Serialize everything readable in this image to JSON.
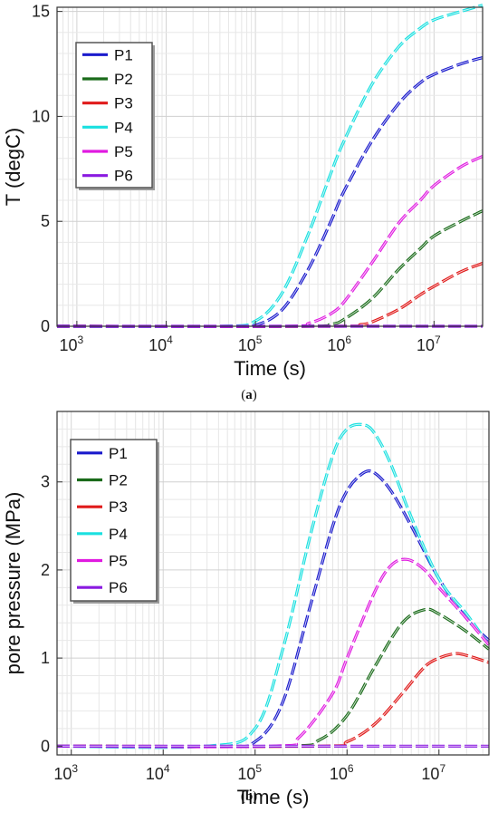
{
  "chart_data": [
    {
      "type": "line",
      "panel": "a",
      "caption": "(a)",
      "xlabel": "Time (s)",
      "ylabel": "T (degC)",
      "xscale": "log",
      "xlim": [
        600,
        35000000
      ],
      "ylim": [
        0,
        15.2
      ],
      "xticks": [
        {
          "base": "10",
          "exp": "3",
          "value": 1000
        },
        {
          "base": "10",
          "exp": "4",
          "value": 10000
        },
        {
          "base": "10",
          "exp": "5",
          "value": 100000
        },
        {
          "base": "10",
          "exp": "6",
          "value": 1000000
        },
        {
          "base": "10",
          "exp": "7",
          "value": 10000000
        }
      ],
      "yticks": [
        "0",
        "5",
        "10",
        "15"
      ],
      "ytick_values": [
        0,
        5,
        10,
        15
      ],
      "grid": true,
      "legend": "top-left",
      "series": [
        {
          "name": "P1",
          "color": "#1a1acc",
          "x": [
            600,
            50000,
            100000,
            200000,
            400000,
            700000,
            1000000,
            2000000,
            4000000,
            7000000,
            10000000,
            20000000,
            35000000
          ],
          "y": [
            0,
            0,
            0.05,
            0.8,
            2.8,
            5.0,
            6.5,
            8.8,
            10.6,
            11.6,
            12.0,
            12.5,
            12.8
          ]
        },
        {
          "name": "P2",
          "color": "#1a6b1a",
          "x": [
            600,
            300000,
            700000,
            1000000,
            2000000,
            4000000,
            7000000,
            10000000,
            20000000,
            35000000
          ],
          "y": [
            0,
            0,
            0.1,
            0.35,
            1.3,
            2.7,
            3.7,
            4.3,
            5.0,
            5.5
          ]
        },
        {
          "name": "P3",
          "color": "#e01a1a",
          "x": [
            600,
            800000,
            1500000,
            2000000,
            4000000,
            7000000,
            10000000,
            20000000,
            35000000
          ],
          "y": [
            0,
            0,
            0.08,
            0.2,
            0.8,
            1.5,
            1.9,
            2.6,
            3.0
          ]
        },
        {
          "name": "P4",
          "color": "#1ae0e0",
          "x": [
            600,
            40000,
            100000,
            200000,
            400000,
            700000,
            1000000,
            2000000,
            4000000,
            7000000,
            10000000,
            20000000,
            35000000
          ],
          "y": [
            0,
            0,
            0.25,
            1.6,
            4.5,
            7.3,
            8.9,
            11.5,
            13.3,
            14.2,
            14.6,
            15.0,
            15.3
          ]
        },
        {
          "name": "P5",
          "color": "#e01ae0",
          "x": [
            600,
            200000,
            400000,
            700000,
            1000000,
            2000000,
            4000000,
            7000000,
            10000000,
            20000000,
            35000000
          ],
          "y": [
            0,
            0,
            0.15,
            0.6,
            1.2,
            3.0,
            4.9,
            6.0,
            6.7,
            7.6,
            8.1
          ]
        },
        {
          "name": "P6",
          "color": "#8a1ae0",
          "x": [
            600,
            35000000
          ],
          "y": [
            0,
            0
          ]
        }
      ]
    },
    {
      "type": "line",
      "panel": "b",
      "caption": "(b)",
      "xlabel": "Time (s)",
      "ylabel": "pore pressure (MPa)",
      "xscale": "log",
      "xlim": [
        700,
        35000000
      ],
      "ylim": [
        -0.1,
        3.8
      ],
      "xticks": [
        {
          "base": "10",
          "exp": "3",
          "value": 1000
        },
        {
          "base": "10",
          "exp": "4",
          "value": 10000
        },
        {
          "base": "10",
          "exp": "5",
          "value": 100000
        },
        {
          "base": "10",
          "exp": "6",
          "value": 1000000
        },
        {
          "base": "10",
          "exp": "7",
          "value": 10000000
        }
      ],
      "yticks": [
        "0",
        "1",
        "2",
        "3"
      ],
      "ytick_values": [
        0,
        1,
        2,
        3
      ],
      "grid": true,
      "legend": "top-left",
      "series": [
        {
          "name": "P1",
          "color": "#1a1acc",
          "x": [
            700,
            40000,
            100000,
            200000,
            400000,
            700000,
            1000000,
            1500000,
            2000000,
            3000000,
            5000000,
            10000000,
            20000000,
            35000000
          ],
          "y": [
            0,
            0,
            0.05,
            0.5,
            1.6,
            2.5,
            2.9,
            3.1,
            3.1,
            2.9,
            2.5,
            1.9,
            1.45,
            1.2
          ]
        },
        {
          "name": "P2",
          "color": "#1a6b1a",
          "x": [
            700,
            200000,
            500000,
            1000000,
            2000000,
            4000000,
            7000000,
            10000000,
            20000000,
            35000000
          ],
          "y": [
            0,
            0,
            0.07,
            0.35,
            0.9,
            1.4,
            1.55,
            1.5,
            1.3,
            1.1
          ]
        },
        {
          "name": "P3",
          "color": "#e01a1a",
          "x": [
            700,
            500000,
            1000000,
            2000000,
            4000000,
            7000000,
            10000000,
            15000000,
            20000000,
            35000000
          ],
          "y": [
            0,
            0,
            0.05,
            0.25,
            0.6,
            0.9,
            1.0,
            1.05,
            1.03,
            0.95
          ]
        },
        {
          "name": "P4",
          "color": "#1ae0e0",
          "x": [
            700,
            30000,
            100000,
            200000,
            400000,
            700000,
            1000000,
            1500000,
            2000000,
            3000000,
            5000000,
            10000000,
            20000000,
            35000000
          ],
          "y": [
            0,
            0,
            0.2,
            1.1,
            2.4,
            3.3,
            3.6,
            3.65,
            3.55,
            3.2,
            2.6,
            1.9,
            1.5,
            1.15
          ]
        },
        {
          "name": "P5",
          "color": "#e01ae0",
          "x": [
            700,
            150000,
            300000,
            700000,
            1000000,
            2000000,
            3000000,
            4500000,
            7000000,
            10000000,
            20000000,
            35000000
          ],
          "y": [
            0,
            0,
            0.1,
            0.6,
            1.0,
            1.75,
            2.05,
            2.12,
            2.0,
            1.8,
            1.45,
            1.15
          ]
        },
        {
          "name": "P6",
          "color": "#8a1ae0",
          "x": [
            700,
            35000000
          ],
          "y": [
            0,
            0
          ]
        }
      ]
    }
  ]
}
